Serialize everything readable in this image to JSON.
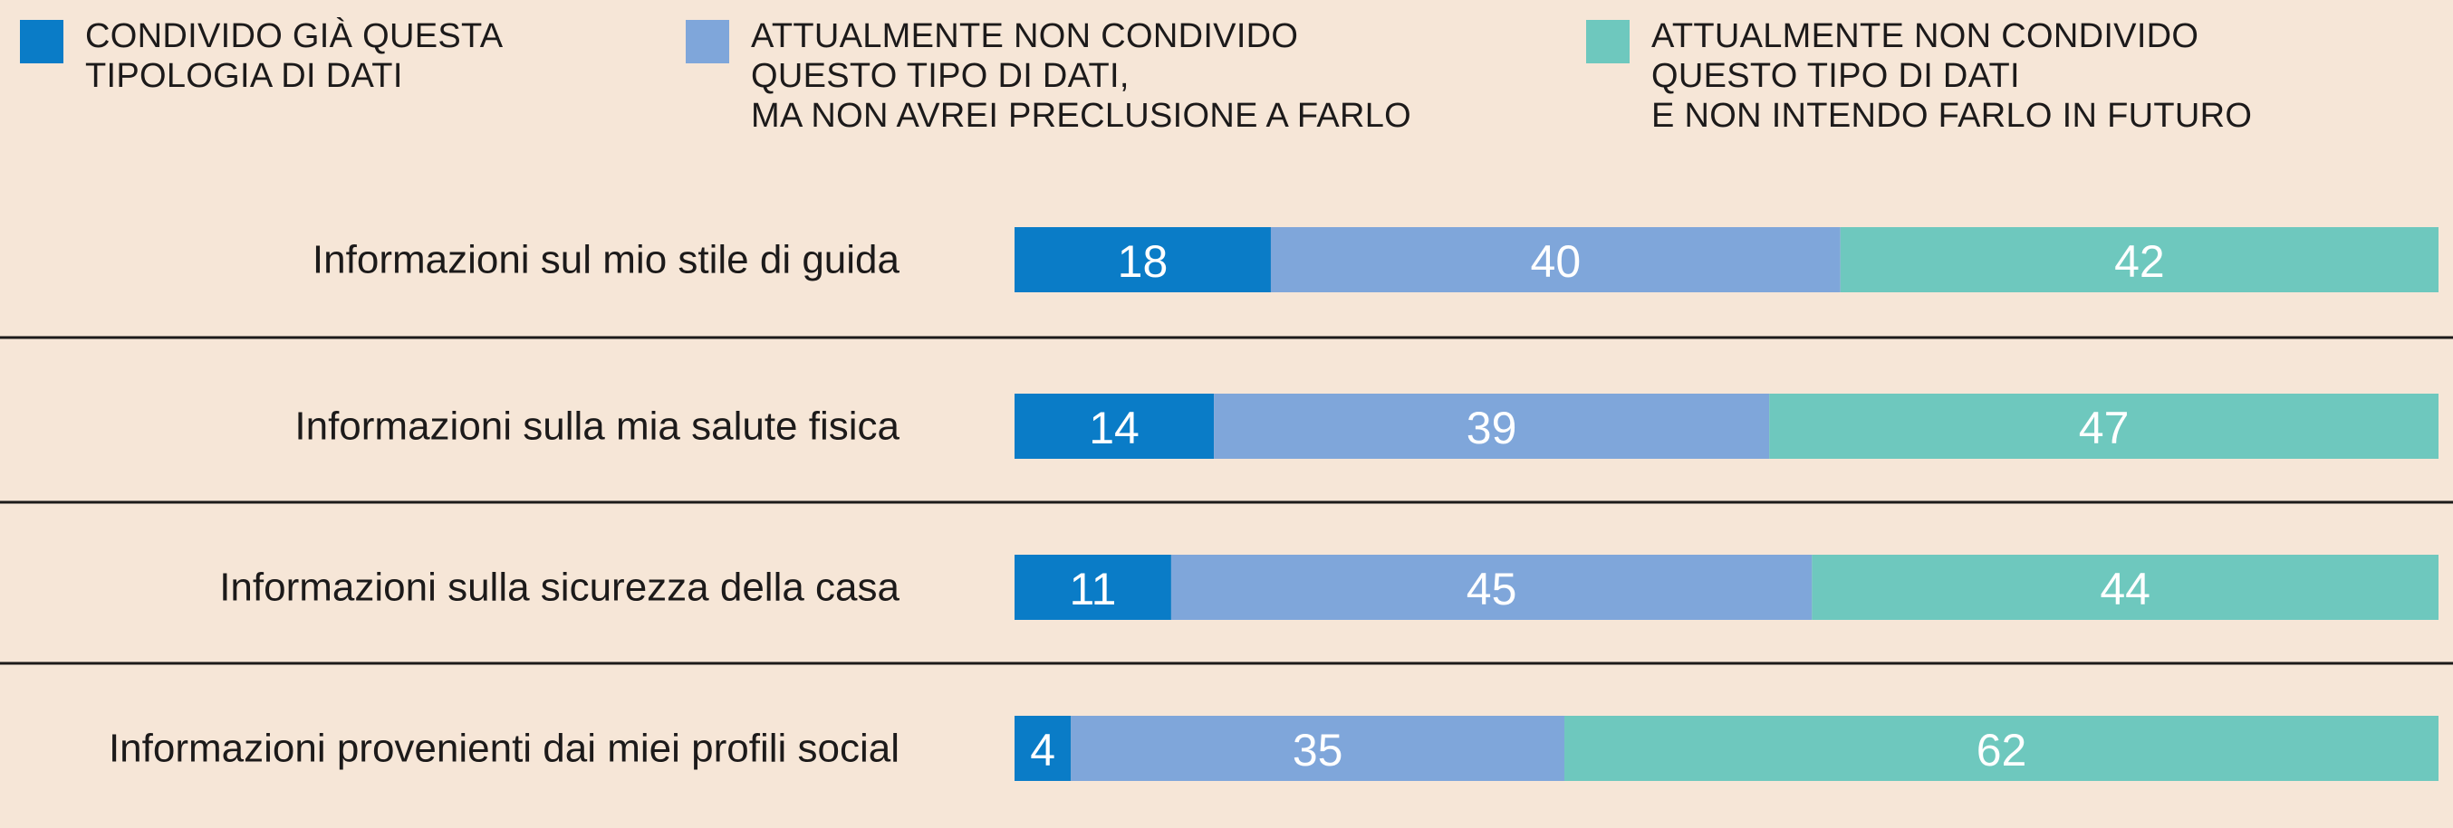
{
  "legend": [
    {
      "lines": [
        "CONDIVIDO GIÀ QUESTA",
        "TIPOLOGIA DI DATI"
      ],
      "color": "#0a7cc7"
    },
    {
      "lines": [
        "ATTUALMENTE NON CONDIVIDO",
        "QUESTO TIPO DI DATI,",
        "MA NON AVREI PRECLUSIONE A FARLO"
      ],
      "color": "#7fa6da"
    },
    {
      "lines": [
        "ATTUALMENTE NON CONDIVIDO",
        "QUESTO TIPO DI DATI",
        "E NON INTENDO FARLO IN FUTURO"
      ],
      "color": "#6ec8be"
    }
  ],
  "chart_data": {
    "type": "bar",
    "stacked": true,
    "orientation": "horizontal",
    "unit": "percent",
    "categories": [
      "Informazioni sul mio stile di guida",
      "Informazioni sulla mia salute fisica",
      "Informazioni sulla sicurezza della casa",
      "Informazioni provenienti dai miei profili social"
    ],
    "series": [
      {
        "name": "CONDIVIDO GIÀ QUESTA TIPOLOGIA DI DATI",
        "color": "#0a7cc7",
        "values": [
          18,
          14,
          11,
          4
        ]
      },
      {
        "name": "ATTUALMENTE NON CONDIVIDO QUESTO TIPO DI DATI, MA NON AVREI PRECLUSIONE A FARLO",
        "color": "#7fa6da",
        "values": [
          40,
          39,
          45,
          35
        ]
      },
      {
        "name": "ATTUALMENTE NON CONDIVIDO QUESTO TIPO DI DATI E NON INTENDO FARLO IN FUTURO",
        "color": "#6ec8be",
        "values": [
          42,
          47,
          44,
          62
        ]
      }
    ],
    "legend_position": "top",
    "grid": false,
    "row_separators": true
  }
}
